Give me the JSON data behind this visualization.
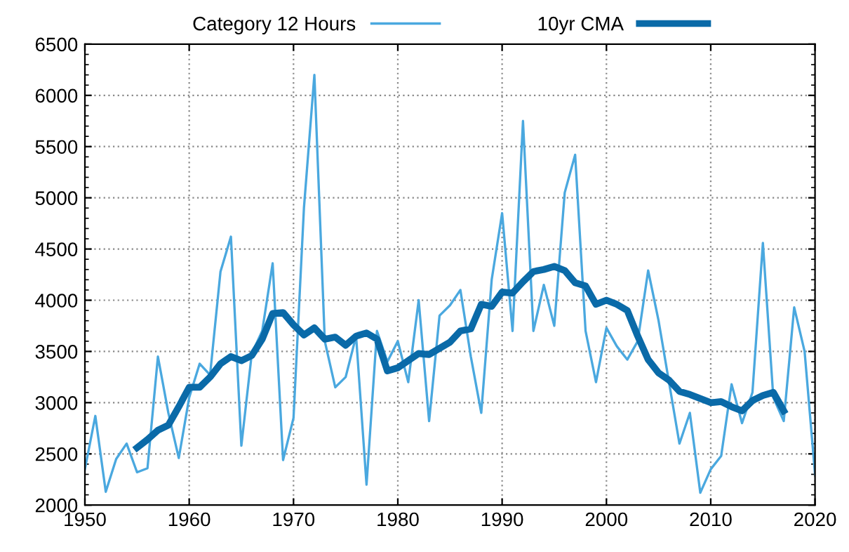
{
  "chart_data": {
    "type": "line",
    "legend": "top",
    "grid": true,
    "xlim": [
      1950,
      2020
    ],
    "ylim": [
      2000,
      6500
    ],
    "xticks": [
      1950,
      1960,
      1970,
      1980,
      1990,
      2000,
      2010,
      2020
    ],
    "yticks": [
      2000,
      2500,
      3000,
      3500,
      4000,
      4500,
      5000,
      5500,
      6000,
      6500
    ],
    "series": [
      {
        "name": "Category 12 Hours",
        "color": "#4aa8df",
        "x": [
          1950,
          1951,
          1952,
          1953,
          1954,
          1955,
          1956,
          1957,
          1958,
          1959,
          1960,
          1961,
          1962,
          1963,
          1964,
          1965,
          1966,
          1967,
          1968,
          1969,
          1970,
          1971,
          1972,
          1973,
          1974,
          1975,
          1976,
          1977,
          1978,
          1979,
          1980,
          1981,
          1982,
          1983,
          1984,
          1985,
          1986,
          1987,
          1988,
          1989,
          1990,
          1991,
          1992,
          1993,
          1994,
          1995,
          1996,
          1997,
          1998,
          1999,
          2000,
          2001,
          2002,
          2003,
          2004,
          2005,
          2006,
          2007,
          2008,
          2009,
          2010,
          2011,
          2012,
          2013,
          2014,
          2015,
          2016,
          2017,
          2018,
          2019,
          2020
        ],
        "values": [
          2350,
          2870,
          2130,
          2450,
          2600,
          2320,
          2360,
          3450,
          2900,
          2460,
          3050,
          3380,
          3270,
          4280,
          4620,
          2580,
          3480,
          3700,
          4360,
          2440,
          2850,
          4900,
          6200,
          3600,
          3150,
          3250,
          3650,
          2200,
          3700,
          3400,
          3600,
          3200,
          4000,
          2820,
          3850,
          3950,
          4100,
          3450,
          2900,
          4200,
          4850,
          3700,
          5750,
          3700,
          4150,
          3750,
          5050,
          5420,
          3700,
          3200,
          3730,
          3550,
          3420,
          3600,
          4290,
          3800,
          3200,
          2600,
          2900,
          2120,
          2350,
          2480,
          3180,
          2800,
          3100,
          4560,
          3050,
          2820,
          3930,
          3500,
          2300
        ]
      },
      {
        "name": "10yr CMA",
        "color": "#0a6aa8",
        "x": [
          1955,
          1956,
          1957,
          1958,
          1959,
          1960,
          1961,
          1962,
          1963,
          1964,
          1965,
          1966,
          1967,
          1968,
          1969,
          1970,
          1971,
          1972,
          1973,
          1974,
          1975,
          1976,
          1977,
          1978,
          1979,
          1980,
          1981,
          1982,
          1983,
          1984,
          1985,
          1986,
          1987,
          1988,
          1989,
          1990,
          1991,
          1992,
          1993,
          1994,
          1995,
          1996,
          1997,
          1998,
          1999,
          2000,
          2001,
          2002,
          2003,
          2004,
          2005,
          2006,
          2007,
          2008,
          2009,
          2010,
          2011,
          2012,
          2013,
          2014,
          2015,
          2016,
          2017
        ],
        "values": [
          2560,
          2640,
          2730,
          2780,
          2960,
          3150,
          3150,
          3250,
          3380,
          3450,
          3410,
          3460,
          3620,
          3870,
          3880,
          3760,
          3660,
          3730,
          3620,
          3640,
          3560,
          3650,
          3680,
          3620,
          3310,
          3340,
          3410,
          3480,
          3470,
          3530,
          3590,
          3700,
          3720,
          3960,
          3940,
          4080,
          4070,
          4180,
          4280,
          4300,
          4330,
          4290,
          4170,
          4140,
          3960,
          4000,
          3960,
          3900,
          3650,
          3420,
          3290,
          3220,
          3110,
          3080,
          3040,
          3000,
          3010,
          2960,
          2920,
          3020,
          3070,
          3100,
          2920
        ]
      }
    ]
  }
}
